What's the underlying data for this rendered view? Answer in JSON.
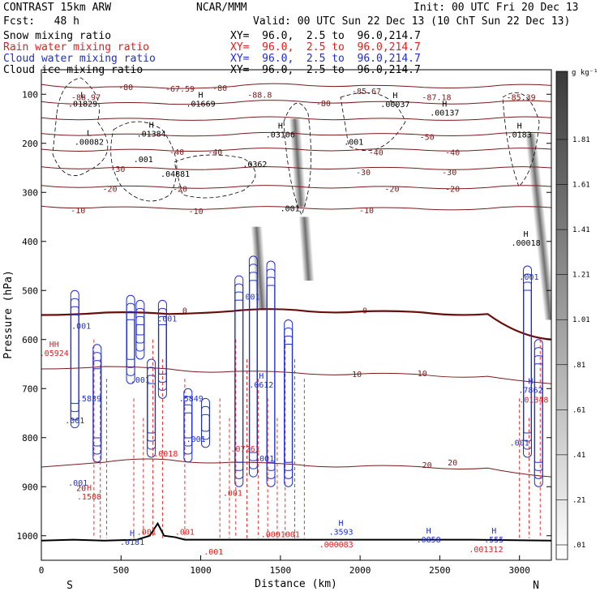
{
  "header": {
    "model": "CONTRAST 15km ARW",
    "org": "NCAR/MMM",
    "init": "Init: 00 UTC Fri 20 Dec 13",
    "fcst": "Fcst:   48 h",
    "valid": "Valid: 00 UTC Sun 22 Dec 13 (10 ChT Sun 22 Dec 13)",
    "fields": [
      {
        "label": "Snow mixing ratio",
        "xy": "XY=  96.0,  2.5 to  96.0,214.7",
        "color": "#000000"
      },
      {
        "label": "Rain water mixing ratio",
        "xy": "XY=  96.0,  2.5 to  96.0,214.7",
        "color": "#e02020"
      },
      {
        "label": "Cloud water mixing ratio",
        "xy": "XY=  96.0,  2.5 to  96.0,214.7",
        "color": "#1f2fd0"
      },
      {
        "label": "Cloud ice mixing ratio",
        "xy": "XY=  96.0,  2.5 to  96.0,214.7",
        "color": "#000000"
      }
    ]
  },
  "chart_data": {
    "type": "cross-section contour",
    "xlabel": "Distance (km)",
    "ylabel": "Pressure (hPa)",
    "xlim": [
      0,
      3200
    ],
    "ylim": [
      1050,
      50
    ],
    "xticks": [
      0,
      500,
      1000,
      1500,
      2000,
      2500,
      3000
    ],
    "yticks": [
      100,
      200,
      300,
      400,
      500,
      600,
      700,
      800,
      900,
      1000
    ],
    "end_labels": {
      "left": "S",
      "right": "N"
    },
    "colorbar": {
      "unit": "g kg⁻¹",
      "ticks": [
        "1.81",
        "1.61",
        "1.41",
        "1.21",
        "1.01",
        ".81",
        ".61",
        ".41",
        ".21",
        ".01"
      ]
    },
    "temperature_contours": [
      {
        "temp": -80,
        "p": [
          80,
          85,
          88,
          84,
          80,
          82,
          86,
          84,
          82
        ]
      },
      {
        "temp": -70,
        "p": [
          115,
          118,
          120,
          117,
          114,
          116,
          118,
          117,
          115
        ]
      },
      {
        "temp": -60,
        "p": [
          148,
          150,
          152,
          150,
          148,
          150,
          152,
          150,
          148
        ]
      },
      {
        "temp": -50,
        "p": [
          180,
          182,
          184,
          182,
          180,
          181,
          183,
          182,
          180
        ]
      },
      {
        "temp": -40,
        "p": [
          212,
          214,
          215,
          213,
          212,
          213,
          214,
          213,
          212
        ]
      },
      {
        "temp": -30,
        "p": [
          248,
          250,
          252,
          251,
          250,
          250,
          252,
          251,
          250
        ]
      },
      {
        "temp": -20,
        "p": [
          286,
          288,
          290,
          289,
          288,
          289,
          291,
          290,
          288
        ]
      },
      {
        "temp": -10,
        "p": [
          328,
          330,
          333,
          332,
          331,
          332,
          334,
          333,
          331
        ]
      },
      {
        "temp": 0,
        "p": [
          550,
          545,
          548,
          542,
          540,
          543,
          545,
          548,
          600
        ]
      },
      {
        "temp": 10,
        "p": [
          660,
          655,
          660,
          665,
          668,
          670,
          672,
          675,
          690
        ]
      },
      {
        "temp": 20,
        "p": [
          860,
          850,
          845,
          850,
          855,
          858,
          860,
          862,
          880
        ]
      }
    ],
    "contour_x": [
      0,
      400,
      800,
      1200,
      1600,
      2000,
      2400,
      2800,
      3200
    ],
    "temp_labels": [
      {
        "text": "-80",
        "x": 530,
        "p": 85
      },
      {
        "text": "-67.59",
        "x": 870,
        "p": 88
      },
      {
        "text": "-80",
        "x": 1120,
        "p": 86
      },
      {
        "text": "-88.97",
        "x": 280,
        "p": 105
      },
      {
        "text": "-88.8",
        "x": 1370,
        "p": 100
      },
      {
        "text": "-85.67",
        "x": 2040,
        "p": 93
      },
      {
        "text": "-87.18",
        "x": 2480,
        "p": 105
      },
      {
        "text": "-85.39",
        "x": 3010,
        "p": 105
      },
      {
        "text": "-80",
        "x": 1770,
        "p": 118
      },
      {
        "text": "-50",
        "x": 2420,
        "p": 186
      },
      {
        "text": "-40",
        "x": 2100,
        "p": 218
      },
      {
        "text": "-40",
        "x": 2580,
        "p": 218
      },
      {
        "text": "-40",
        "x": 850,
        "p": 217
      },
      {
        "text": "-40",
        "x": 1090,
        "p": 217
      },
      {
        "text": "-30",
        "x": 480,
        "p": 252
      },
      {
        "text": "-30",
        "x": 2020,
        "p": 258
      },
      {
        "text": "-30",
        "x": 2560,
        "p": 258
      },
      {
        "text": "-20",
        "x": 430,
        "p": 292
      },
      {
        "text": "-20",
        "x": 870,
        "p": 292
      },
      {
        "text": "-20",
        "x": 2200,
        "p": 292
      },
      {
        "text": "-20",
        "x": 2580,
        "p": 292
      },
      {
        "text": "-10",
        "x": 230,
        "p": 336
      },
      {
        "text": "-10",
        "x": 970,
        "p": 338
      },
      {
        "text": "-10",
        "x": 2040,
        "p": 336
      },
      {
        "text": "0",
        "x": 900,
        "p": 540
      },
      {
        "text": "0",
        "x": 2030,
        "p": 540
      },
      {
        "text": "10",
        "x": 1980,
        "p": 670
      },
      {
        "text": "10",
        "x": 2390,
        "p": 668
      },
      {
        "text": "20",
        "x": 2420,
        "p": 855
      },
      {
        "text": "20",
        "x": 2580,
        "p": 850
      },
      {
        "text": "20",
        "x": 250,
        "p": 902
      }
    ],
    "maxmin_labels": [
      {
        "mark": "L",
        "text": ".01829",
        "x": 260,
        "p": 117,
        "color": "#000000"
      },
      {
        "mark": "H",
        "text": ".01669",
        "x": 1000,
        "p": 117,
        "color": "#000000"
      },
      {
        "mark": "H",
        "text": ".01384",
        "x": 690,
        "p": 178,
        "color": "#000000"
      },
      {
        "mark": "L",
        "text": ".00082",
        "x": 300,
        "p": 195,
        "color": "#000000"
      },
      {
        "mark": "H",
        "text": ".03106",
        "x": 1500,
        "p": 180,
        "color": "#000000"
      },
      {
        "mark": "H",
        "text": ".00037",
        "x": 2220,
        "p": 118,
        "color": "#000000"
      },
      {
        "mark": "H",
        "text": ".00137",
        "x": 2530,
        "p": 135,
        "color": "#000000"
      },
      {
        "mark": "H",
        "text": ".0183",
        "x": 3000,
        "p": 180,
        "color": "#000000"
      },
      {
        "mark": "",
        "text": ".001",
        "x": 1960,
        "p": 195,
        "color": "#000000"
      },
      {
        "mark": "",
        "text": ".001",
        "x": 640,
        "p": 230,
        "color": "#000000"
      },
      {
        "mark": "",
        "text": ".04881",
        "x": 840,
        "p": 260,
        "color": "#000000"
      },
      {
        "mark": "",
        "text": ".0362",
        "x": 1340,
        "p": 240,
        "color": "#000000"
      },
      {
        "mark": "",
        "text": ".001",
        "x": 1560,
        "p": 330,
        "color": "#000000"
      },
      {
        "mark": "H",
        "text": ".00018",
        "x": 3040,
        "p": 400,
        "color": "#000000"
      },
      {
        "mark": "",
        "text": ".001",
        "x": 3060,
        "p": 470,
        "color": "#1f2fd0"
      },
      {
        "mark": "",
        "text": ".001",
        "x": 1310,
        "p": 510,
        "color": "#1f2fd0"
      },
      {
        "mark": "",
        "text": ".001",
        "x": 790,
        "p": 555,
        "color": "#1f2fd0"
      },
      {
        "mark": "",
        "text": ".001",
        "x": 250,
        "p": 570,
        "color": "#1f2fd0"
      },
      {
        "mark": "HH",
        "text": ".05924",
        "x": 80,
        "p": 625,
        "color": "#e02020"
      },
      {
        "mark": "",
        "text": ".001",
        "x": 620,
        "p": 680,
        "color": "#1f2fd0"
      },
      {
        "mark": "H",
        "text": ".0612",
        "x": 1380,
        "p": 690,
        "color": "#1f2fd0"
      },
      {
        "mark": "",
        "text": ".5849",
        "x": 940,
        "p": 718,
        "color": "#1f2fd0"
      },
      {
        "mark": "",
        "text": ".5839",
        "x": 300,
        "p": 718,
        "color": "#1f2fd0"
      },
      {
        "mark": "H",
        "text": ".7862",
        "x": 3070,
        "p": 700,
        "color": "#1f2fd0"
      },
      {
        "mark": "",
        "text": ".01348",
        "x": 3090,
        "p": 720,
        "color": "#e02020"
      },
      {
        "mark": "",
        "text": ".001",
        "x": 210,
        "p": 762,
        "color": "#1f2fd0"
      },
      {
        "mark": "",
        "text": ".001",
        "x": 970,
        "p": 800,
        "color": "#1f2fd0"
      },
      {
        "mark": "",
        "text": ".001",
        "x": 3000,
        "p": 808,
        "color": "#1f2fd0"
      },
      {
        "mark": "",
        "text": ".0018",
        "x": 780,
        "p": 830,
        "color": "#e02020"
      },
      {
        "mark": "",
        "text": ".07261",
        "x": 1280,
        "p": 820,
        "color": "#e02020"
      },
      {
        "mark": "",
        "text": ".001",
        "x": 1400,
        "p": 840,
        "color": "#1f2fd0"
      },
      {
        "mark": "",
        "text": ".001",
        "x": 230,
        "p": 890,
        "color": "#1f2fd0"
      },
      {
        "mark": "H",
        "text": ".1508",
        "x": 300,
        "p": 918,
        "color": "#e02020"
      },
      {
        "mark": "",
        "text": ".001",
        "x": 1200,
        "p": 910,
        "color": "#e02020"
      },
      {
        "mark": "",
        "text": ".001",
        "x": 660,
        "p": 990,
        "color": "#e02020"
      },
      {
        "mark": "",
        "text": ".001",
        "x": 900,
        "p": 990,
        "color": "#e02020"
      },
      {
        "mark": "H",
        "text": ".0181",
        "x": 570,
        "p": 1010,
        "color": "#1f2fd0"
      },
      {
        "mark": "",
        "text": ".0001001",
        "x": 1500,
        "p": 995,
        "color": "#e02020"
      },
      {
        "mark": "H",
        "text": ".3593",
        "x": 1880,
        "p": 990,
        "color": "#1f2fd0"
      },
      {
        "mark": "",
        "text": ".000083",
        "x": 1850,
        "p": 1015,
        "color": "#e02020"
      },
      {
        "mark": "H",
        "text": ".0858",
        "x": 2430,
        "p": 1005,
        "color": "#1f2fd0"
      },
      {
        "mark": "H",
        "text": ".555",
        "x": 2840,
        "p": 1005,
        "color": "#1f2fd0"
      },
      {
        "mark": "",
        "text": ".001312",
        "x": 2790,
        "p": 1025,
        "color": "#e02020"
      },
      {
        "mark": "",
        "text": ".001",
        "x": 1080,
        "p": 1030,
        "color": "#e02020"
      }
    ],
    "cloud_water_columns": [
      {
        "x": 210,
        "ptop": 500,
        "pbot": 780
      },
      {
        "x": 350,
        "ptop": 610,
        "pbot": 850
      },
      {
        "x": 560,
        "ptop": 510,
        "pbot": 690
      },
      {
        "x": 620,
        "ptop": 520,
        "pbot": 640
      },
      {
        "x": 690,
        "ptop": 640,
        "pbot": 840
      },
      {
        "x": 760,
        "ptop": 520,
        "pbot": 720
      },
      {
        "x": 920,
        "ptop": 700,
        "pbot": 850
      },
      {
        "x": 1030,
        "ptop": 720,
        "pbot": 820
      },
      {
        "x": 1240,
        "ptop": 470,
        "pbot": 900
      },
      {
        "x": 1330,
        "ptop": 430,
        "pbot": 880
      },
      {
        "x": 1440,
        "ptop": 440,
        "pbot": 900
      },
      {
        "x": 1550,
        "ptop": 560,
        "pbot": 900
      },
      {
        "x": 3050,
        "ptop": 450,
        "pbot": 840
      },
      {
        "x": 3120,
        "ptop": 600,
        "pbot": 900
      }
    ],
    "rain_columns": [
      330,
      370,
      410,
      580,
      640,
      700,
      760,
      900,
      1120,
      1180,
      1220,
      1290,
      1360,
      1420,
      1480,
      1530,
      1590,
      1650,
      3000,
      3060,
      3130
    ],
    "ice_plumes": [
      {
        "x": 1590,
        "ptop": 150,
        "pbot": 330
      },
      {
        "x": 1350,
        "ptop": 370,
        "pbot": 540
      },
      {
        "x": 1650,
        "ptop": 350,
        "pbot": 480
      },
      {
        "x": 3070,
        "ptop": 180,
        "pbot": 560
      }
    ],
    "terrain": [
      {
        "x": 0,
        "p": 1010
      },
      {
        "x": 200,
        "p": 1008
      },
      {
        "x": 400,
        "p": 1010
      },
      {
        "x": 600,
        "p": 1008
      },
      {
        "x": 680,
        "p": 1000
      },
      {
        "x": 730,
        "p": 975
      },
      {
        "x": 770,
        "p": 1000
      },
      {
        "x": 840,
        "p": 1003
      },
      {
        "x": 900,
        "p": 1008
      },
      {
        "x": 1200,
        "p": 1008
      },
      {
        "x": 1700,
        "p": 1008
      },
      {
        "x": 2200,
        "p": 1008
      },
      {
        "x": 2700,
        "p": 1008
      },
      {
        "x": 3200,
        "p": 1010
      }
    ]
  }
}
